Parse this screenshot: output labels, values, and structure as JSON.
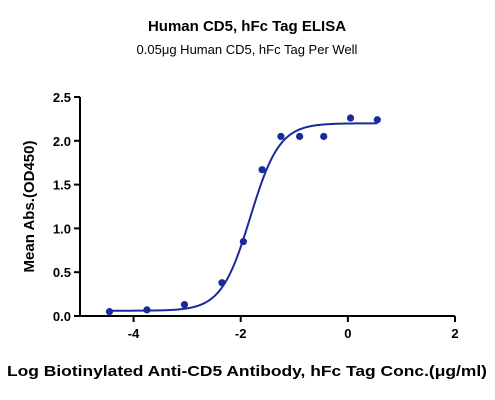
{
  "chart_data": {
    "type": "scatter",
    "title": "Human CD5, hFc Tag ELISA",
    "subtitle": "0.05μg Human CD5, hFc Tag Per Well",
    "xlabel": "Log Biotinylated Anti-CD5 Antibody, hFc Tag Conc.(μg/ml)",
    "ylabel": "Mean Abs.(OD450)",
    "xlim": [
      -5,
      2
    ],
    "ylim": [
      0,
      2.5
    ],
    "x_ticks": [
      -4,
      -2,
      0,
      2
    ],
    "x_tick_labels": [
      "-4",
      "-2",
      "0",
      "2"
    ],
    "y_ticks": [
      0,
      0.5,
      1.0,
      1.5,
      2.0,
      2.5
    ],
    "y_tick_labels": [
      "0.0",
      "0.5",
      "1.0",
      "1.5",
      "2.0",
      "2.5"
    ],
    "grid": false,
    "point_color": "#1a2a9c",
    "curve_color": "#1a2a9c",
    "series": [
      {
        "x": [
          -4.45,
          -3.75,
          -3.05,
          -2.35,
          -1.95,
          -1.6,
          -1.25,
          -0.9,
          -0.45,
          0.05,
          0.55
        ],
        "y": [
          0.05,
          0.07,
          0.13,
          0.38,
          0.85,
          1.67,
          2.05,
          2.05,
          2.05,
          2.26,
          2.24
        ]
      }
    ],
    "fit_curve": {
      "model": "4PL",
      "bottom": 0.06,
      "top": 2.2,
      "log_ec50": -1.82,
      "hill_slope": 1.6
    }
  }
}
